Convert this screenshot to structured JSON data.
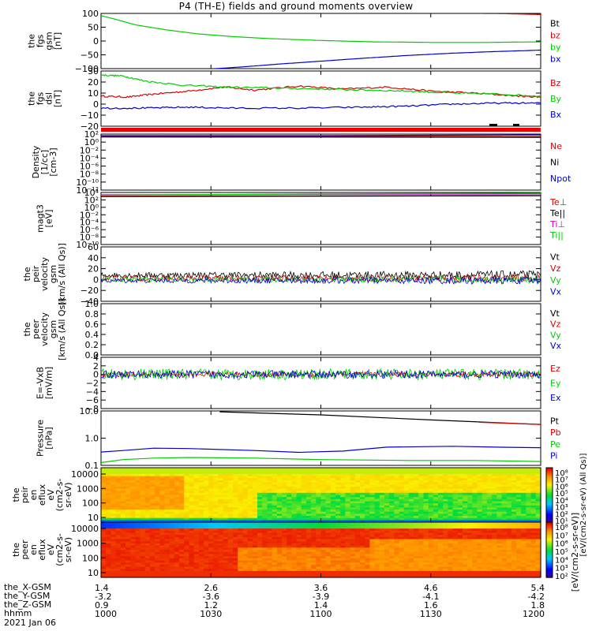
{
  "title": "P4 (TH-E) fields and ground moments overview",
  "chart_data": [
    {
      "type": "line",
      "panel": "fgs-gsm",
      "ylabel": [
        "the",
        "fgs",
        "gsm",
        "[nT]"
      ],
      "ylim": [
        -100,
        100
      ],
      "yticks": [
        "100",
        "50",
        "0",
        "−50",
        "−100"
      ],
      "series": [
        {
          "name": "Bt",
          "color": "#000000",
          "x": [
            0.97,
            1.0
          ],
          "y": [
            100,
            96
          ]
        },
        {
          "name": "bz",
          "color": "#dd0000",
          "x": [
            0.86,
            0.92,
            1.0
          ],
          "y": [
            100,
            99,
            96
          ]
        },
        {
          "name": "by",
          "color": "#00cc00",
          "x": [
            0.0,
            0.03,
            0.08,
            0.15,
            0.22,
            0.3,
            0.38,
            0.5,
            0.62,
            0.75,
            0.88,
            1.0
          ],
          "y": [
            92,
            80,
            58,
            40,
            26,
            16,
            9,
            2,
            -3,
            -5,
            -5,
            -3
          ]
        },
        {
          "name": "bx",
          "color": "#0000cc",
          "x": [
            0.26,
            0.32,
            0.4,
            0.5,
            0.6,
            0.7,
            0.8,
            0.9,
            1.0
          ],
          "y": [
            -100,
            -94,
            -84,
            -73,
            -62,
            -52,
            -44,
            -38,
            -33
          ]
        }
      ]
    },
    {
      "type": "line",
      "panel": "fgs-dsl",
      "ylabel": [
        "the",
        "fgs",
        "dsl",
        "[nT]"
      ],
      "ylim": [
        -25,
        30
      ],
      "yticks": [
        "30",
        "20",
        "10",
        "0",
        "−10",
        "−20"
      ],
      "series": [
        {
          "name": "Bz",
          "color": "#dd0000",
          "x": [
            0.0,
            0.06,
            0.12,
            0.2,
            0.28,
            0.35,
            0.45,
            0.55,
            0.65,
            0.75,
            0.85,
            0.95,
            1.0
          ],
          "y": [
            5,
            4,
            7,
            10,
            14,
            11,
            15,
            12,
            14,
            10,
            8,
            5,
            4
          ]
        },
        {
          "name": "By",
          "color": "#00cc00",
          "x": [
            0.0,
            0.05,
            0.1,
            0.18,
            0.28,
            0.4,
            0.5,
            0.6,
            0.7,
            0.8,
            0.9,
            1.0
          ],
          "y": [
            26,
            25,
            20,
            16,
            14,
            13,
            12,
            11,
            10,
            8,
            7,
            5
          ]
        },
        {
          "name": "Bx",
          "color": "#0000cc",
          "x": [
            0.0,
            0.1,
            0.2,
            0.3,
            0.45,
            0.6,
            0.7,
            0.8,
            0.9,
            1.0
          ],
          "y": [
            -7,
            -7,
            -6,
            -7,
            -7,
            -6,
            -5,
            -3,
            -2,
            -2
          ]
        }
      ]
    },
    {
      "type": "line",
      "panel": "density",
      "ylabel": [
        "Density",
        "[1/cc]",
        "[cm-3]"
      ],
      "ylim_log": [
        -12,
        2
      ],
      "yticks": [
        "10²",
        "10⁰",
        "10⁻²",
        "10⁻⁴",
        "10⁻⁶",
        "10⁻⁸",
        "10⁻¹⁰",
        "10⁻¹²"
      ],
      "series": [
        {
          "name": "Ne",
          "color": "#dd0000",
          "x": [
            0.0,
            1.0
          ],
          "y": [
            1.5,
            1.4
          ]
        },
        {
          "name": "Ni",
          "color": "#000000",
          "x": [
            0.0,
            1.0
          ],
          "y": [
            1.3,
            1.2
          ]
        },
        {
          "name": "Npot",
          "color": "#0000cc",
          "x": [
            0.0,
            0.5,
            1.0
          ],
          "y": [
            1.6,
            1.6,
            1.8
          ]
        }
      ]
    },
    {
      "type": "line",
      "panel": "magt3",
      "ylabel": [
        "magt3",
        "[eV]"
      ],
      "ylim_log": [
        -10,
        4
      ],
      "yticks": [
        "10⁴",
        "10²",
        "10⁰",
        "10⁻²",
        "10⁻⁴",
        "10⁻⁶",
        "10⁻⁸",
        "10⁻¹⁰"
      ],
      "series": [
        {
          "name": "Te⊥",
          "color": "#dd0000",
          "x": [
            0.0,
            1.0
          ],
          "y": [
            3.0,
            3.2
          ]
        },
        {
          "name": "Te||",
          "color": "#000000",
          "x": [
            0.0,
            1.0
          ],
          "y": [
            2.9,
            3.1
          ]
        },
        {
          "name": "Ti⊥",
          "color": "#cc00cc",
          "x": [
            0.0,
            1.0
          ],
          "y": [
            3.4,
            3.6
          ]
        },
        {
          "name": "Ti||",
          "color": "#00cc00",
          "x": [
            0.0,
            0.5,
            1.0
          ],
          "y": [
            3.3,
            3.6,
            3.8
          ]
        }
      ]
    },
    {
      "type": "line",
      "panel": "peir-velocity",
      "ylabel": [
        "the",
        "peir",
        "velocity",
        "gsm",
        "[km/s (All Qs)]"
      ],
      "ylim": [
        -40,
        60
      ],
      "yticks": [
        "60",
        "40",
        "20",
        "0",
        "−20",
        "−40"
      ],
      "series": [
        {
          "name": "Vt",
          "color": "#000000",
          "base": 8,
          "noise": 5,
          "grow": 14
        },
        {
          "name": "Vz",
          "color": "#dd0000",
          "base": 2,
          "noise": 5,
          "grow": 8
        },
        {
          "name": "Vy",
          "color": "#00cc00",
          "base": 0,
          "noise": 4,
          "grow": 10
        },
        {
          "name": "Vx",
          "color": "#0000cc",
          "base": -2,
          "noise": 4,
          "grow": 12
        }
      ]
    },
    {
      "type": "line",
      "panel": "peer-velocity",
      "ylabel": [
        "the",
        "peer",
        "velocity",
        "gsm",
        "[km/s (All Qs)]"
      ],
      "ylim": [
        0,
        1
      ],
      "yticks": [
        "1.0",
        "0.8",
        "0.6",
        "0.4",
        "0.2",
        "0.0"
      ],
      "series": [
        {
          "name": "Vt",
          "color": "#000000"
        },
        {
          "name": "Vz",
          "color": "#dd0000"
        },
        {
          "name": "Vy",
          "color": "#00cc00"
        },
        {
          "name": "Vx",
          "color": "#0000cc"
        }
      ]
    },
    {
      "type": "line",
      "panel": "exb",
      "ylabel": [
        "E=-VxB",
        "[mV/m]"
      ],
      "ylim": [
        -8,
        4
      ],
      "yticks": [
        "4",
        "2",
        "0",
        "−2",
        "−4",
        "−6",
        "−8"
      ],
      "series": [
        {
          "name": "Ez",
          "color": "#dd0000",
          "base": 0,
          "noise": 0.6
        },
        {
          "name": "Ey",
          "color": "#00cc00",
          "base": 0,
          "noise": 1.3
        },
        {
          "name": "Ex",
          "color": "#0000cc",
          "base": 0,
          "noise": 0.9
        }
      ]
    },
    {
      "type": "line",
      "panel": "pressure",
      "ylabel": [
        "Pressure",
        "[nPa]"
      ],
      "ylim_log": [
        -1.3,
        1.55
      ],
      "yticks": [
        "10.0",
        "1.0",
        "0.1"
      ],
      "series": [
        {
          "name": "Pt",
          "color": "#000000",
          "x": [
            0.27,
            0.5,
            0.75,
            1.0
          ],
          "y": [
            32,
            22,
            12,
            7
          ]
        },
        {
          "name": "Pb",
          "color": "#dd0000",
          "x": [
            0.86,
            1.0
          ],
          "y": [
            9,
            7
          ]
        },
        {
          "name": "Pe",
          "color": "#00cc00",
          "x": [
            0.0,
            0.05,
            0.12,
            0.2,
            0.35,
            0.5,
            0.7,
            0.85,
            1.0
          ],
          "y": [
            0.07,
            0.1,
            0.12,
            0.13,
            0.12,
            0.1,
            0.09,
            0.09,
            0.08
          ]
        },
        {
          "name": "Pi",
          "color": "#0000cc",
          "x": [
            0.0,
            0.05,
            0.12,
            0.2,
            0.35,
            0.45,
            0.55,
            0.65,
            0.8,
            0.9,
            1.0
          ],
          "y": [
            0.25,
            0.3,
            0.4,
            0.38,
            0.3,
            0.24,
            0.28,
            0.45,
            0.5,
            0.45,
            0.42
          ]
        }
      ]
    },
    {
      "type": "heatmap",
      "panel": "peir-en-eflux",
      "ylabel": [
        "the",
        "peir",
        "en",
        "eflux",
        "eV",
        "(cm2-s-",
        "sr-eV)"
      ],
      "yticks": [
        "10000",
        "1000",
        "100",
        "10"
      ],
      "colorbar_ticks": [
        "10⁸",
        "10⁷",
        "10⁶",
        "10⁵",
        "10⁴",
        "10³",
        "10²",
        "10¹"
      ]
    },
    {
      "type": "heatmap",
      "panel": "peer-en-eflux",
      "ylabel": [
        "the",
        "peer",
        "en",
        "eflux",
        "eV",
        "(cm2-s-",
        "sr-eV)"
      ],
      "yticks": [
        "10000",
        "1000",
        "100",
        "10"
      ],
      "colorbar_ticks": [
        "10⁸",
        "10⁷",
        "10⁶",
        "10⁵",
        "10⁴",
        "10³",
        "10²"
      ]
    }
  ],
  "colorbar_label": "[eV/(cm2-s-sr-eV)]",
  "colorbar_label_2": "[eV/(cm2-s-sr-eV) (All Qs)]",
  "xaxis": {
    "rows": [
      {
        "label": "the_X-GSM",
        "values": [
          "1.4",
          "2.6",
          "3.6",
          "4.6",
          "5.4"
        ]
      },
      {
        "label": "the_Y-GSM",
        "values": [
          "-3.2",
          "-3.6",
          "-3.9",
          "-4.1",
          "-4.2"
        ]
      },
      {
        "label": "the_Z-GSM",
        "values": [
          "0.9",
          "1.2",
          "1.4",
          "1.6",
          "1.8"
        ]
      },
      {
        "label": "hhmm",
        "values": [
          "1000",
          "1030",
          "1100",
          "1130",
          "1200"
        ]
      }
    ],
    "date": "2021 Jan 06"
  }
}
